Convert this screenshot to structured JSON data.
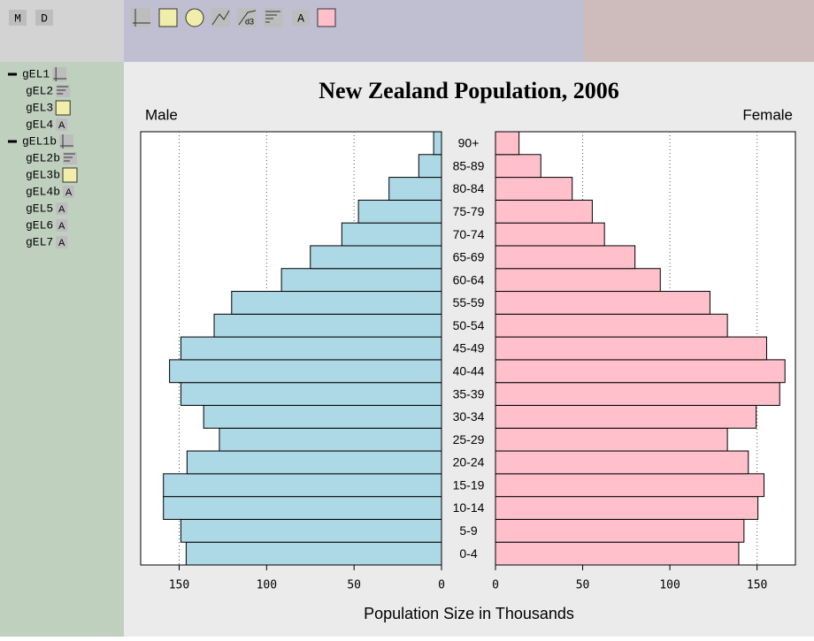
{
  "toolbar": {
    "buttons": [
      "M",
      "D"
    ],
    "text_tool": "A"
  },
  "tree": {
    "nodes": [
      {
        "label": "gEL1"
      },
      {
        "label": "gEL2"
      },
      {
        "label": "gEL3"
      },
      {
        "label": "gEL4",
        "badge": "A"
      },
      {
        "label": "gEL1b"
      },
      {
        "label": "gEL2b"
      },
      {
        "label": "gEL3b"
      },
      {
        "label": "gEL4b",
        "badge": "A"
      },
      {
        "label": "gEL5",
        "badge": "A"
      },
      {
        "label": "gEL6",
        "badge": "A"
      },
      {
        "label": "gEL7",
        "badge": "A"
      }
    ]
  },
  "chart_data": {
    "type": "population_pyramid",
    "title": "New Zealand Population, 2006",
    "xlabel": "Population Size in Thousands",
    "categories": [
      "0-4",
      "5-9",
      "10-14",
      "15-19",
      "20-24",
      "25-29",
      "30-34",
      "35-39",
      "40-44",
      "45-49",
      "50-54",
      "55-59",
      "60-64",
      "65-69",
      "70-74",
      "75-79",
      "80-84",
      "85-89",
      "90+"
    ],
    "series": [
      {
        "name": "Male",
        "color": "#add8e6",
        "values": [
          146,
          149,
          159,
          159,
          145.5,
          127,
          136,
          149,
          155.5,
          149,
          130,
          120,
          91.5,
          75,
          57,
          47.5,
          30,
          13,
          4.5
        ]
      },
      {
        "name": "Female",
        "color": "#ffc0cb",
        "values": [
          139.5,
          142.5,
          150.5,
          154,
          145,
          133,
          149.5,
          163,
          166,
          155.5,
          133,
          123,
          94.5,
          80,
          62.5,
          55.5,
          44,
          26,
          13.5
        ]
      }
    ],
    "xlim": [
      0,
      172
    ],
    "xticks": [
      0,
      50,
      100,
      150
    ],
    "grid": true
  }
}
